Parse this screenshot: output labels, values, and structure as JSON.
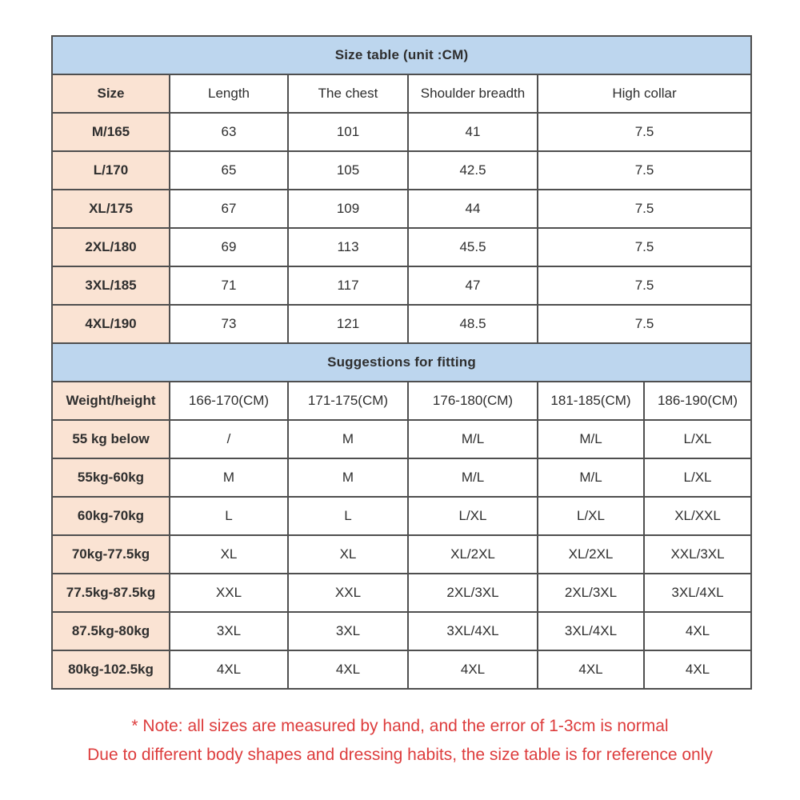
{
  "size_table": {
    "title": "Size table (unit :CM)",
    "columns": [
      "Size",
      "Length",
      "The chest",
      "Shoulder breadth",
      "High collar"
    ],
    "rows": [
      [
        "M/165",
        "63",
        "101",
        "41",
        "7.5"
      ],
      [
        "L/170",
        "65",
        "105",
        "42.5",
        "7.5"
      ],
      [
        "XL/175",
        "67",
        "109",
        "44",
        "7.5"
      ],
      [
        "2XL/180",
        "69",
        "113",
        "45.5",
        "7.5"
      ],
      [
        "3XL/185",
        "71",
        "117",
        "47",
        "7.5"
      ],
      [
        "4XL/190",
        "73",
        "121",
        "48.5",
        "7.5"
      ]
    ]
  },
  "fitting_table": {
    "title": "Suggestions for fitting",
    "columns": [
      "Weight/height",
      "166-170(CM)",
      "171-175(CM)",
      "176-180(CM)",
      "181-185(CM)",
      "186-190(CM)"
    ],
    "rows": [
      [
        "55 kg below",
        "/",
        "M",
        "M/L",
        "M/L",
        "L/XL"
      ],
      [
        "55kg-60kg",
        "M",
        "M",
        "M/L",
        "M/L",
        "L/XL"
      ],
      [
        "60kg-70kg",
        "L",
        "L",
        "L/XL",
        "L/XL",
        "XL/XXL"
      ],
      [
        "70kg-77.5kg",
        "XL",
        "XL",
        "XL/2XL",
        "XL/2XL",
        "XXL/3XL"
      ],
      [
        "77.5kg-87.5kg",
        "XXL",
        "XXL",
        "2XL/3XL",
        "2XL/3XL",
        "3XL/4XL"
      ],
      [
        "87.5kg-80kg",
        "3XL",
        "3XL",
        "3XL/4XL",
        "3XL/4XL",
        "4XL"
      ],
      [
        "80kg-102.5kg",
        "4XL",
        "4XL",
        "4XL",
        "4XL",
        "4XL"
      ]
    ]
  },
  "note": {
    "line1": "* Note: all sizes are measured by hand, and the error of 1-3cm is normal",
    "line2": "Due to different body shapes and dressing habits, the size table is for reference only"
  },
  "colors": {
    "title_bar_blue": "#bdd6ee",
    "label_cell_peach": "#fae3d3",
    "grid_border": "#4f4f4f",
    "note_red": "#dd3c3c",
    "body_text": "#2e2e2e"
  }
}
